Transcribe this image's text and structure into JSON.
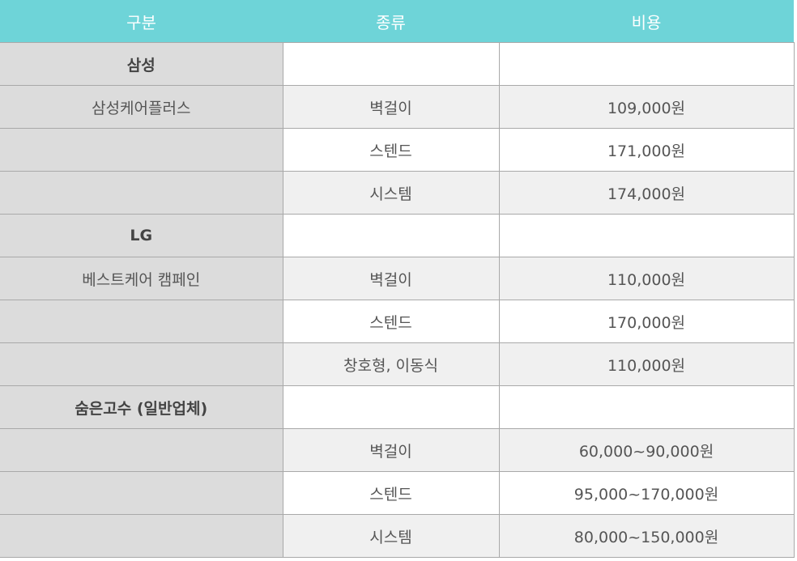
{
  "header": {
    "col1": "구분",
    "col2": "종류",
    "col3": "비용"
  },
  "rows": [
    {
      "type": "group",
      "category": "삼성",
      "kind": "",
      "cost": ""
    },
    {
      "type": "item",
      "alt": true,
      "category": "삼성케어플러스",
      "kind": "벽걸이",
      "cost": "109,000원"
    },
    {
      "type": "item",
      "alt": false,
      "category": "",
      "kind": "스텐드",
      "cost": "171,000원"
    },
    {
      "type": "item",
      "alt": true,
      "category": "",
      "kind": "시스템",
      "cost": "174,000원"
    },
    {
      "type": "group",
      "category": "LG",
      "kind": "",
      "cost": ""
    },
    {
      "type": "item",
      "alt": true,
      "category": "베스트케어 캠페인",
      "kind": "벽걸이",
      "cost": "110,000원"
    },
    {
      "type": "item",
      "alt": false,
      "category": "",
      "kind": "스텐드",
      "cost": "170,000원"
    },
    {
      "type": "item",
      "alt": true,
      "category": "",
      "kind": "창호형, 이동식",
      "cost": "110,000원"
    },
    {
      "type": "group",
      "category": "숨은고수 (일반업체)",
      "kind": "",
      "cost": ""
    },
    {
      "type": "item",
      "alt": true,
      "category": "",
      "kind": "벽걸이",
      "cost": "60,000~90,000원"
    },
    {
      "type": "item",
      "alt": false,
      "category": "",
      "kind": "스텐드",
      "cost": "95,000~170,000원"
    },
    {
      "type": "item",
      "alt": true,
      "category": "",
      "kind": "시스템",
      "cost": "80,000~150,000원"
    }
  ],
  "colors": {
    "header_bg": "#6ed4d8",
    "first_col_bg": "#dcdcdc",
    "alt_row_bg": "#f0f0f0"
  }
}
